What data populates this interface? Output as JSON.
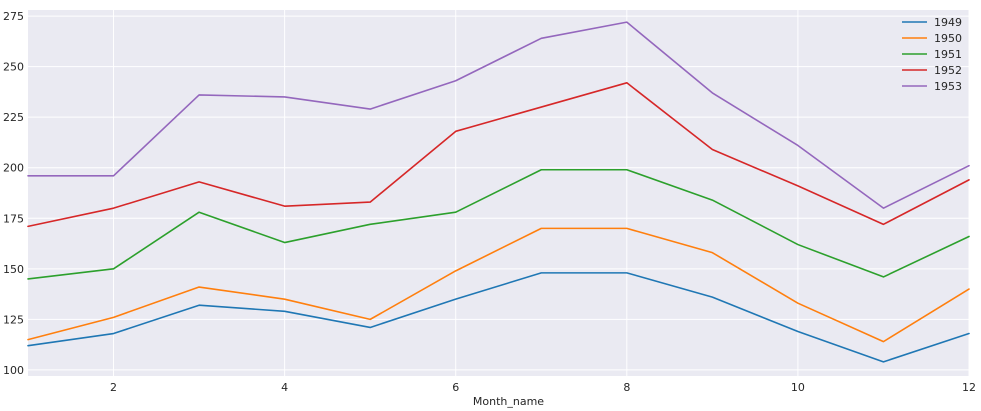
{
  "chart_data": {
    "type": "line",
    "title": "",
    "xlabel": "Month_name",
    "ylabel": "",
    "xlim": [
      1,
      12
    ],
    "ylim": [
      97,
      278
    ],
    "xticks": [
      2,
      4,
      6,
      8,
      10,
      12
    ],
    "yticks": [
      100,
      125,
      150,
      175,
      200,
      225,
      250,
      275
    ],
    "grid": true,
    "background": "#eaeaf2",
    "legend_position": "top-right",
    "x": [
      1,
      2,
      3,
      4,
      5,
      6,
      7,
      8,
      9,
      10,
      11,
      12
    ],
    "series": [
      {
        "name": "1949",
        "color": "#1f77b4",
        "values": [
          112,
          118,
          132,
          129,
          121,
          135,
          148,
          148,
          136,
          119,
          104,
          118
        ]
      },
      {
        "name": "1950",
        "color": "#ff7f0e",
        "values": [
          115,
          126,
          141,
          135,
          125,
          149,
          170,
          170,
          158,
          133,
          114,
          140
        ]
      },
      {
        "name": "1951",
        "color": "#2ca02c",
        "values": [
          145,
          150,
          178,
          163,
          172,
          178,
          199,
          199,
          184,
          162,
          146,
          166
        ]
      },
      {
        "name": "1952",
        "color": "#d62728",
        "values": [
          171,
          180,
          193,
          181,
          183,
          218,
          230,
          242,
          209,
          191,
          172,
          194
        ]
      },
      {
        "name": "1953",
        "color": "#9467bd",
        "values": [
          196,
          196,
          236,
          235,
          229,
          243,
          264,
          272,
          237,
          211,
          180,
          201
        ]
      }
    ]
  }
}
